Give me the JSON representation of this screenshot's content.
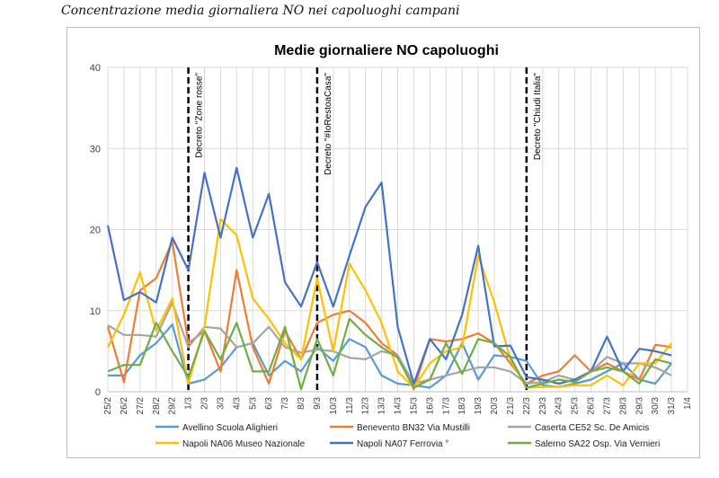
{
  "document": {
    "caption": "Concentrazione media giornaliera NO nei capoluoghi campani"
  },
  "chart_data": {
    "type": "line",
    "title": "Medie giornaliere NO capoluoghi",
    "xlabel": "",
    "ylabel": "",
    "ylim": [
      0,
      40
    ],
    "yticks": [
      0,
      10,
      20,
      30,
      40
    ],
    "grid": true,
    "legend_position": "bottom",
    "categories": [
      "25/2",
      "26/2",
      "27/2",
      "28/2",
      "29/2",
      "1/3",
      "2/3",
      "3/3",
      "4/3",
      "5/3",
      "6/3",
      "7/3",
      "8/3",
      "9/3",
      "10/3",
      "11/3",
      "12/3",
      "13/3",
      "14/3",
      "15/3",
      "16/3",
      "17/3",
      "18/3",
      "19/3",
      "20/3",
      "21/3",
      "22/3",
      "23/3",
      "24/3",
      "25/3",
      "26/3",
      "27/3",
      "28/3",
      "29/3",
      "30/3",
      "31/3",
      "1/4"
    ],
    "tick_labels": [
      "25/2",
      "26/2",
      "27/2",
      "28/2",
      "29/2",
      "1/3",
      "2/3",
      "3/3",
      "4/3",
      "5/3",
      "6/3",
      "7/3",
      "8/3",
      "9/3",
      "10/3",
      "11/3",
      "12/3",
      "13/3",
      "14/3",
      "15/3",
      "16/3",
      "17/3",
      "18/3",
      "19/3",
      "20/3",
      "21/3",
      "22/3",
      "23/3",
      "24/3",
      "25/3",
      "26/3",
      "27/3",
      "28/3",
      "29/3",
      "30/3",
      "31/3",
      "1/4"
    ],
    "annotations": [
      {
        "x": "1/3",
        "label": "Decreto \"Zone rosse\""
      },
      {
        "x": "9/3",
        "label": "Decreto \"#IoRestoaCasa\""
      },
      {
        "x": "22/3",
        "label": "Decreto \"Chiudi Italia\""
      }
    ],
    "series": [
      {
        "name": "Avellino Scuola Alighieri",
        "color": "#5b9bd5",
        "values": [
          2.0,
          2.0,
          4.5,
          6.0,
          8.3,
          1.0,
          1.5,
          3.0,
          5.5,
          6.0,
          2.0,
          3.8,
          2.5,
          5.5,
          3.8,
          6.5,
          5.5,
          2.0,
          1.0,
          0.8,
          0.5,
          2.0,
          6.0,
          1.5,
          4.5,
          4.3,
          3.8,
          0.8,
          0.6,
          1.0,
          1.5,
          2.5,
          3.5,
          1.5,
          1.0,
          3.5,
          null
        ]
      },
      {
        "name": "Benevento BN32 Via Mustilli",
        "color": "#ed7d31",
        "values": [
          8.0,
          1.2,
          12.5,
          14.0,
          18.5,
          6.0,
          7.5,
          2.5,
          15.0,
          5.5,
          1.0,
          7.5,
          4.0,
          8.5,
          9.5,
          10.0,
          8.5,
          6.0,
          4.5,
          0.3,
          6.5,
          6.2,
          6.5,
          7.2,
          6.0,
          3.5,
          1.0,
          2.0,
          2.5,
          4.5,
          2.5,
          3.5,
          2.5,
          1.5,
          5.8,
          5.5,
          null
        ]
      },
      {
        "name": "Caserta CE52 Sc. De Amicis",
        "color": "#a5a5a5",
        "values": [
          8.2,
          7.0,
          7.0,
          6.8,
          11.0,
          5.5,
          8.0,
          7.8,
          5.5,
          6.0,
          8.0,
          5.5,
          4.8,
          5.2,
          5.0,
          4.2,
          4.0,
          5.0,
          4.5,
          1.0,
          1.5,
          2.0,
          2.5,
          3.0,
          3.0,
          2.5,
          1.0,
          1.2,
          2.0,
          1.5,
          2.5,
          4.3,
          3.5,
          3.5,
          3.0,
          2.0,
          null
        ]
      },
      {
        "name": "Napoli NA06 Museo Nazionale",
        "color": "#ffc000",
        "values": [
          5.5,
          9.5,
          14.7,
          7.5,
          11.5,
          1.0,
          8.0,
          21.3,
          19.3,
          11.5,
          9.0,
          6.0,
          4.0,
          14.0,
          5.0,
          15.8,
          12.5,
          8.5,
          2.5,
          0.5,
          3.5,
          5.0,
          5.5,
          16.8,
          11.0,
          4.0,
          0.5,
          0.6,
          0.6,
          0.8,
          0.8,
          2.0,
          0.8,
          3.5,
          3.5,
          6.0,
          null
        ]
      },
      {
        "name": "Napoli NA07 Ferrovia °",
        "color": "#4472c4",
        "values": [
          20.5,
          11.3,
          12.3,
          11.0,
          19.0,
          15.0,
          27.0,
          19.0,
          27.6,
          19.0,
          24.4,
          13.5,
          10.5,
          16.0,
          10.5,
          16.8,
          22.8,
          25.8,
          8.0,
          1.0,
          6.5,
          4.0,
          9.5,
          18.0,
          5.6,
          5.7,
          1.8,
          1.5,
          1.0,
          1.5,
          2.5,
          6.8,
          2.5,
          5.3,
          5.0,
          4.5,
          null
        ]
      },
      {
        "name": "Salerno SA22 Osp. Via Vernieri",
        "color": "#70ad47",
        "values": [
          2.5,
          3.3,
          3.3,
          8.5,
          5.0,
          1.8,
          7.5,
          4.0,
          8.5,
          2.5,
          2.5,
          8.0,
          0.3,
          6.5,
          2.0,
          9.0,
          7.0,
          5.5,
          4.2,
          0.5,
          1.5,
          6.0,
          2.2,
          6.5,
          6.0,
          4.3,
          0.5,
          1.0,
          1.5,
          1.2,
          2.5,
          3.0,
          2.5,
          1.0,
          4.0,
          3.5,
          null
        ]
      }
    ]
  }
}
